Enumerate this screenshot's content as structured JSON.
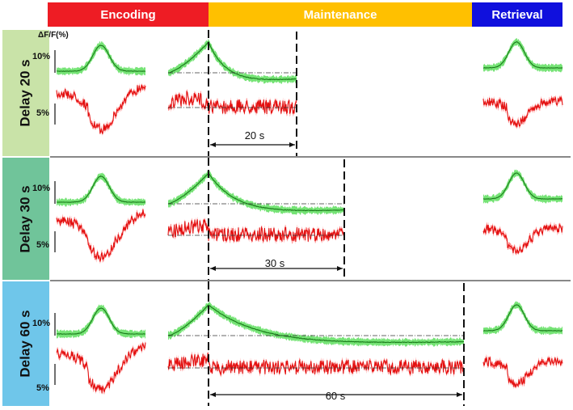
{
  "phases": {
    "encoding": {
      "label": "Encoding",
      "color": "#ee1c24"
    },
    "maintenance": {
      "label": "Maintenance",
      "color": "#ffc000"
    },
    "retrieval": {
      "label": "Retrieval",
      "color": "#1010dd"
    }
  },
  "unit_label": "ΔF/F(%)",
  "scale_green": "10%",
  "scale_red": "5%",
  "rows": [
    {
      "delay_label": "Delay 20 s",
      "duration_label": "20 s",
      "band_color": "#c9e3a8"
    },
    {
      "delay_label": "Delay 30 s",
      "duration_label": "30 s",
      "band_color": "#70c49a"
    },
    {
      "delay_label": "Delay 60 s",
      "duration_label": "60 s",
      "band_color": "#6fc6ea"
    }
  ],
  "trace_colors": {
    "green_fill": "#66e066",
    "green_line": "#1a7a1a",
    "red_fill": "#ff7b7b",
    "red_line": "#e31010"
  }
}
